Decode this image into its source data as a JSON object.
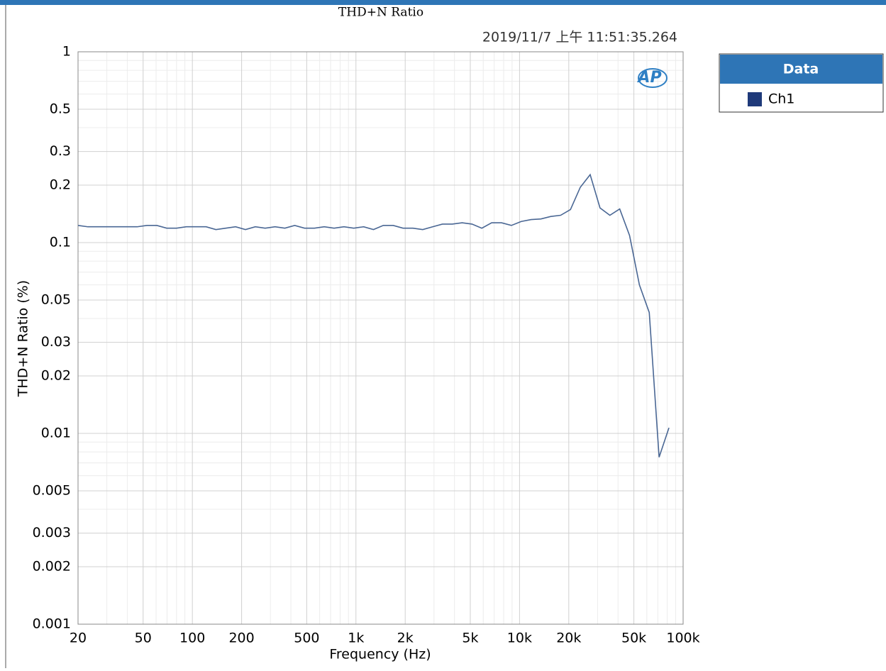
{
  "chart_data": {
    "type": "line",
    "title": "THD+N Ratio",
    "subtitle": "2019/11/7 上午 11:51:35.264",
    "logo": "AP",
    "x_label": "Frequency (Hz)",
    "y_label": "THD+N Ratio (%)",
    "x_log": true,
    "y_log": true,
    "grid": true,
    "legend_title": "Data",
    "legend_position": "outside-right",
    "xlim": [
      20,
      100000
    ],
    "ylim": [
      0.001,
      1
    ],
    "xticks": [
      20,
      50,
      100,
      200,
      500,
      {
        "value": 1000,
        "label": "1k"
      },
      {
        "value": 2000,
        "label": "2k"
      },
      {
        "value": 5000,
        "label": "5k"
      },
      {
        "value": 10000,
        "label": "10k"
      },
      {
        "value": 20000,
        "label": "20k"
      },
      {
        "value": 50000,
        "label": "50k"
      },
      {
        "value": 100000,
        "label": "100k"
      }
    ],
    "xminorticks": [
      30,
      40,
      60,
      70,
      80,
      90,
      300,
      400,
      600,
      700,
      800,
      900,
      3000,
      4000,
      6000,
      7000,
      8000,
      9000,
      30000,
      40000,
      60000,
      70000,
      80000,
      90000
    ],
    "yticks": [
      1,
      0.5,
      0.3,
      0.2,
      0.1,
      0.05,
      0.03,
      0.02,
      0.01,
      0.005,
      0.003,
      0.002,
      0.001
    ],
    "yminorticks": [
      0.9,
      0.8,
      0.7,
      0.6,
      0.4,
      0.09,
      0.08,
      0.07,
      0.06,
      0.04,
      0.009,
      0.008,
      0.007,
      0.006,
      0.004
    ],
    "x": [
      20,
      22.97,
      26.39,
      30.31,
      34.82,
      40,
      45.95,
      52.78,
      60.63,
      69.64,
      80,
      91.9,
      105.6,
      121.3,
      139.3,
      160,
      183.8,
      211.1,
      242.5,
      278.6,
      320,
      367.6,
      422.2,
      485,
      557.2,
      640,
      735.2,
      844.5,
      970,
      1114,
      1280,
      1470,
      1689,
      1940,
      2229,
      2560,
      2941,
      3378,
      3880,
      4457,
      5120,
      5881,
      6756,
      7760,
      8914,
      10240,
      11763,
      13512,
      15521,
      17829,
      20480,
      23525,
      27024,
      31042,
      35658,
      40960,
      47051,
      54047,
      62084,
      71317,
      81920
    ],
    "series": [
      {
        "name": "Ch1",
        "color": "#4a6794",
        "legend_color": "#1f3a7a",
        "values": [
          0.123,
          0.121,
          0.121,
          0.121,
          0.121,
          0.121,
          0.121,
          0.123,
          0.123,
          0.119,
          0.119,
          0.121,
          0.121,
          0.121,
          0.117,
          0.119,
          0.121,
          0.117,
          0.121,
          0.119,
          0.121,
          0.119,
          0.123,
          0.119,
          0.119,
          0.121,
          0.119,
          0.121,
          0.119,
          0.121,
          0.117,
          0.123,
          0.123,
          0.119,
          0.119,
          0.117,
          0.121,
          0.125,
          0.125,
          0.127,
          0.125,
          0.119,
          0.127,
          0.127,
          0.123,
          0.129,
          0.132,
          0.133,
          0.137,
          0.139,
          0.149,
          0.195,
          0.227,
          0.152,
          0.139,
          0.15,
          0.109,
          0.06,
          0.043,
          0.0075,
          0.0107
        ]
      }
    ]
  }
}
